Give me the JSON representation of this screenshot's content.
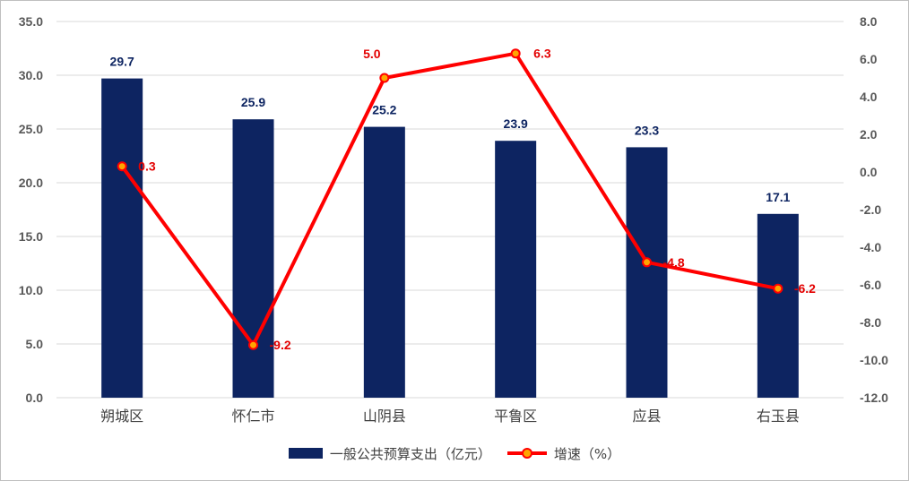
{
  "chart_data": {
    "type": "bar",
    "categories": [
      "朔城区",
      "怀仁市",
      "山阴县",
      "平鲁区",
      "应县",
      "右玉县"
    ],
    "series": [
      {
        "name": "一般公共预算支出（亿元）",
        "type": "bar",
        "axis": "left",
        "values": [
          29.7,
          25.9,
          25.2,
          23.9,
          23.3,
          17.1
        ],
        "labels": [
          "29.7",
          "25.9",
          "25.2",
          "23.9",
          "23.3",
          "17.1"
        ],
        "color": "#0d2461"
      },
      {
        "name": "增速（%）",
        "type": "line",
        "axis": "right",
        "values": [
          0.3,
          -9.2,
          5.0,
          6.3,
          -4.8,
          -6.2
        ],
        "labels": [
          "0.3",
          "-9.2",
          "5.0",
          "6.3",
          "-4.8",
          "-6.2"
        ],
        "color": "#ff0000",
        "marker_color": "#ffa500"
      }
    ],
    "y_left": {
      "ylim": [
        0,
        35
      ],
      "ticks": [
        "0.0",
        "5.0",
        "10.0",
        "15.0",
        "20.0",
        "25.0",
        "30.0",
        "35.0"
      ]
    },
    "y_right": {
      "ylim": [
        -12,
        8
      ],
      "ticks": [
        "-12.0",
        "-10.0",
        "-8.0",
        "-6.0",
        "-4.0",
        "-2.0",
        "0.0",
        "2.0",
        "4.0",
        "6.0",
        "8.0"
      ]
    },
    "grid": true,
    "legend_position": "bottom"
  }
}
